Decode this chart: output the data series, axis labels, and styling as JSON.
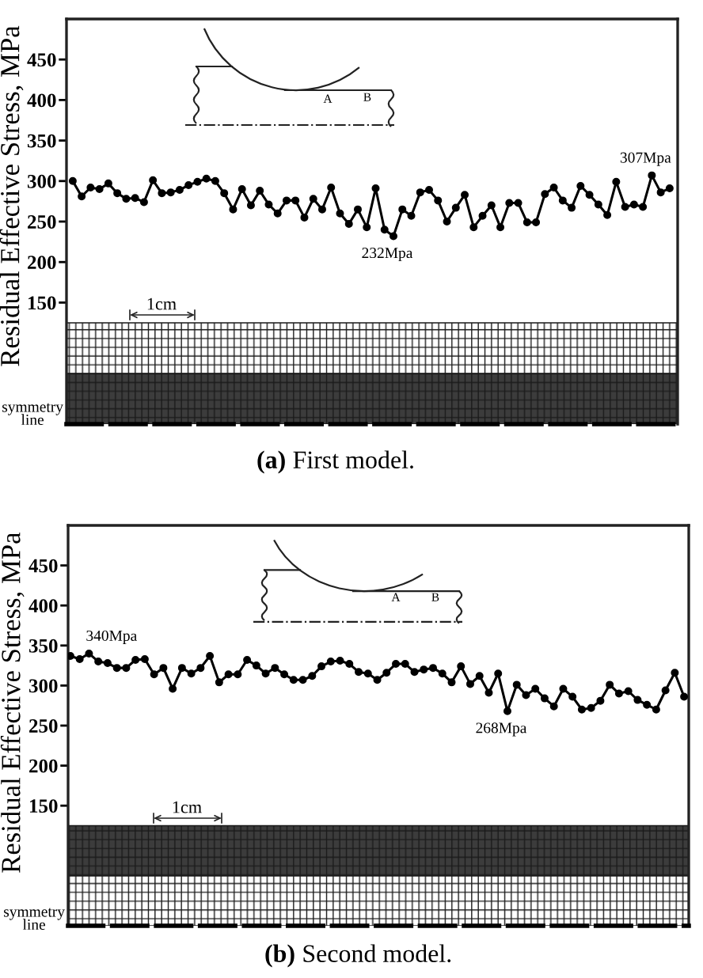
{
  "chart_data": [
    {
      "type": "line",
      "title": "(a) First model.",
      "ylabel": "Residual Effective Stress, MPa",
      "categories": [
        null,
        null,
        null,
        null,
        null,
        null,
        null,
        null,
        null,
        null,
        null,
        null,
        null,
        null,
        null,
        null,
        null,
        null,
        null,
        null,
        null,
        null,
        null,
        null,
        null,
        null,
        null,
        null,
        null,
        null,
        null,
        null,
        null,
        null,
        null,
        null,
        null,
        null,
        null,
        null,
        null,
        null,
        null,
        null,
        null,
        null,
        null,
        null,
        null,
        null,
        null,
        null,
        null,
        null,
        null,
        null,
        null,
        null,
        null,
        null,
        null,
        null,
        null,
        null,
        null,
        null,
        null,
        null
      ],
      "series": [
        {
          "color": "#000000",
          "values": [
            300,
            281,
            292,
            290,
            297,
            285,
            278,
            279,
            274,
            301,
            285,
            286,
            289,
            295,
            299,
            303,
            300,
            285,
            265,
            290,
            270,
            288,
            271,
            260,
            276,
            276,
            255,
            278,
            265,
            292,
            260,
            247,
            265,
            243,
            291,
            240,
            232,
            265,
            257,
            286,
            289,
            276,
            250,
            267,
            283,
            243,
            257,
            270,
            243,
            273,
            273,
            249,
            249,
            284,
            292,
            276,
            267,
            294,
            283,
            271,
            258,
            299,
            268,
            271,
            268,
            307,
            286,
            291
          ]
        }
      ],
      "ylim": [
        0,
        500
      ],
      "yticks": [
        150,
        200,
        250,
        300,
        350,
        400,
        450
      ],
      "tick_labels": "y",
      "marker": "circle",
      "line_style": "solid",
      "annotations": [
        {
          "text": "307Mpa",
          "y": 307
        },
        {
          "text": "232Mpa",
          "y": 232
        },
        "1cm",
        "symmetry line",
        "A",
        "B"
      ]
    },
    {
      "type": "line",
      "title": "(b) Second model.",
      "ylabel": "Residual Effective Stress, MPa",
      "categories": [
        null,
        null,
        null,
        null,
        null,
        null,
        null,
        null,
        null,
        null,
        null,
        null,
        null,
        null,
        null,
        null,
        null,
        null,
        null,
        null,
        null,
        null,
        null,
        null,
        null,
        null,
        null,
        null,
        null,
        null,
        null,
        null,
        null,
        null,
        null,
        null,
        null,
        null,
        null,
        null,
        null,
        null,
        null,
        null,
        null,
        null,
        null,
        null,
        null,
        null,
        null,
        null,
        null,
        null,
        null,
        null,
        null,
        null,
        null,
        null,
        null,
        null,
        null,
        null,
        null,
        null,
        null
      ],
      "series": [
        {
          "color": "#000000",
          "values": [
            337,
            333,
            340,
            330,
            328,
            322,
            322,
            332,
            333,
            314,
            322,
            296,
            322,
            315,
            322,
            337,
            304,
            314,
            314,
            332,
            325,
            315,
            322,
            314,
            307,
            307,
            312,
            324,
            330,
            331,
            327,
            317,
            315,
            307,
            316,
            327,
            327,
            317,
            320,
            322,
            315,
            304,
            324,
            302,
            312,
            291,
            315,
            268,
            301,
            288,
            296,
            284,
            274,
            296,
            286,
            270,
            272,
            281,
            301,
            290,
            293,
            282,
            276,
            270,
            294,
            316,
            286
          ]
        }
      ],
      "ylim": [
        0,
        500
      ],
      "yticks": [
        150,
        200,
        250,
        300,
        350,
        400,
        450
      ],
      "tick_labels": "y",
      "marker": "circle",
      "line_style": "solid",
      "annotations": [
        {
          "text": "340Mpa",
          "y": 340
        },
        {
          "text": "268Mpa",
          "y": 268
        },
        "1cm",
        "symmetry line",
        "A",
        "B"
      ]
    }
  ]
}
